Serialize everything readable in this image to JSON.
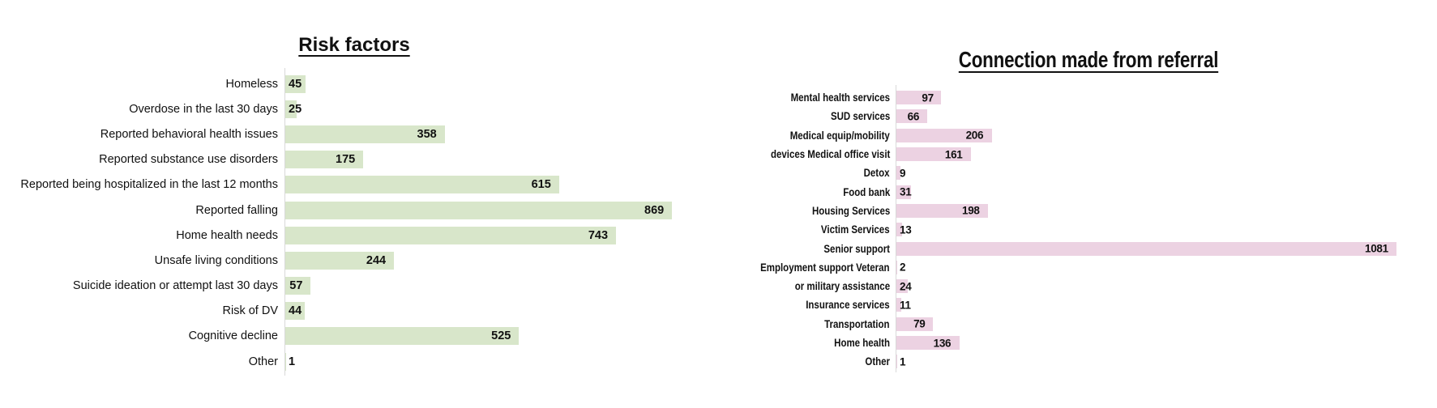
{
  "page": {
    "background_color": "#ffffff",
    "text_color": "#111111"
  },
  "chart_data": [
    {
      "type": "bar",
      "orientation": "horizontal",
      "title": "Risk factors",
      "title_underlined": true,
      "categories": [
        "Homeless",
        "Overdose in the last 30 days",
        "Reported behavioral health issues",
        "Reported substance use disorders",
        "Reported being hospitalized in the last 12 months",
        "Reported falling",
        "Home health needs",
        "Unsafe living conditions",
        "Suicide ideation or attempt last 30 days",
        "Risk of DV",
        "Cognitive decline",
        "Other"
      ],
      "values": [
        45,
        25,
        358,
        175,
        615,
        869,
        743,
        244,
        57,
        44,
        525,
        1
      ],
      "max_value": 869,
      "bar_color": "#d8e6ca",
      "value_label_color": "#111111",
      "value_labels": "bold, at inner end of bar",
      "grid": false,
      "axis_line_color": "#d9d9d9",
      "xlabel": "",
      "ylabel": ""
    },
    {
      "type": "bar",
      "orientation": "horizontal",
      "title": "Connection made from referral",
      "title_underlined": true,
      "categories": [
        "Mental health services",
        "SUD services",
        "Medical equip/mobility",
        "devices Medical office visit",
        "Detox",
        "Food bank",
        "Housing Services",
        "Victim Services",
        "Senior support",
        "Employment support Veteran",
        "or military assistance",
        "Insurance services",
        "Transportation",
        "Home health",
        "Other"
      ],
      "values": [
        97,
        66,
        206,
        161,
        9,
        31,
        198,
        13,
        1081,
        2,
        24,
        11,
        79,
        136,
        1
      ],
      "max_value": 1081,
      "bar_color": "#ecd2e2",
      "value_label_color": "#111111",
      "value_labels": "bold, at inner end of bar",
      "grid": false,
      "axis_line_color": "#d9d9d9",
      "xlabel": "",
      "ylabel": ""
    }
  ]
}
